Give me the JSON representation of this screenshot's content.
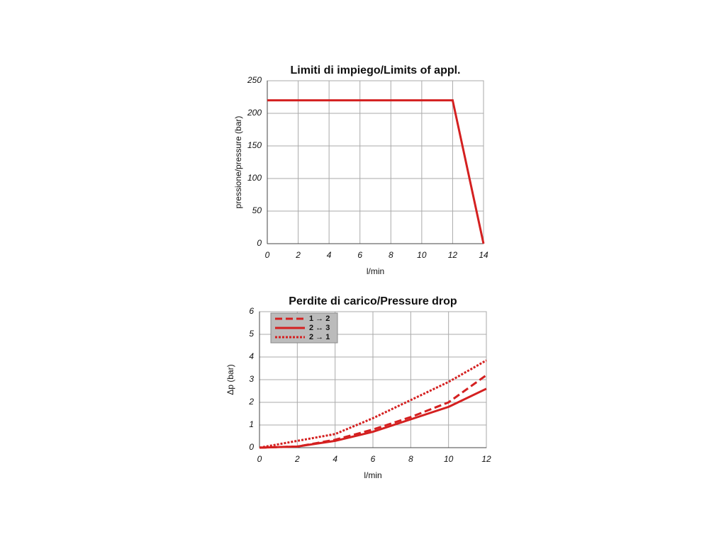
{
  "chart_data": [
    {
      "type": "line",
      "title": "Limiti di impiego/Limits of appl.",
      "x_label": "l/min",
      "y_label": "pressione/pressure (bar)",
      "x": [
        0,
        12,
        14
      ],
      "values": [
        220,
        220,
        0
      ],
      "color": "#d42020",
      "xlim": [
        0,
        14
      ],
      "xticks": [
        0,
        2,
        4,
        6,
        8,
        10,
        12,
        14
      ],
      "ylim": [
        0,
        250
      ],
      "yticks": [
        0,
        50,
        100,
        150,
        200,
        250
      ],
      "grid": true
    },
    {
      "type": "line",
      "title": "Perdite di carico/Pressure drop",
      "x_label": "l/min",
      "y_label": "Δp (bar)",
      "x": [
        0,
        2,
        4,
        6,
        8,
        10,
        12
      ],
      "series": [
        {
          "name": "1 → 2",
          "color": "#d42020",
          "dash": "dashed",
          "values": [
            0,
            0.05,
            0.35,
            0.8,
            1.35,
            2.0,
            3.2
          ]
        },
        {
          "name": "2 ↔ 3",
          "color": "#d42020",
          "dash": "solid",
          "values": [
            0,
            0.05,
            0.3,
            0.7,
            1.25,
            1.8,
            2.6
          ]
        },
        {
          "name": "2 → 1",
          "color": "#d42020",
          "dash": "dotted",
          "values": [
            0,
            0.3,
            0.6,
            1.3,
            2.1,
            2.9,
            3.85
          ]
        }
      ],
      "xlim": [
        0,
        12
      ],
      "xticks": [
        0,
        2,
        4,
        6,
        8,
        10,
        12
      ],
      "ylim": [
        0,
        6
      ],
      "yticks": [
        0,
        1,
        2,
        3,
        4,
        5,
        6
      ],
      "grid": true,
      "legend": "upper-left"
    }
  ]
}
